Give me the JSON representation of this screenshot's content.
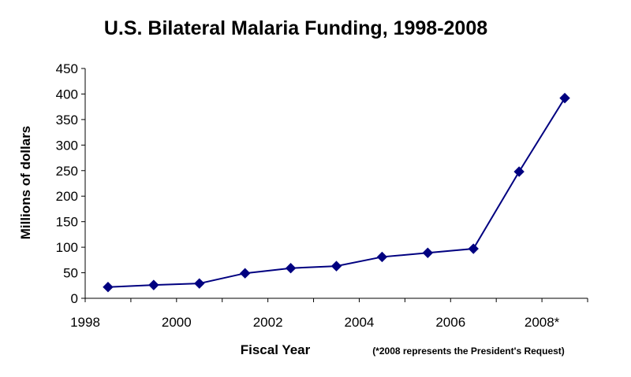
{
  "chart_data": {
    "type": "line",
    "title": "U.S. Bilateral Malaria Funding, 1998-2008",
    "xlabel": "Fiscal Year",
    "ylabel": "Millions of dollars",
    "footnote": "(*2008 represents the President's Request)",
    "x": [
      "1998",
      "1999",
      "2000",
      "2001",
      "2002",
      "2003",
      "2004",
      "2005",
      "2006",
      "2007",
      "2008*"
    ],
    "x_tick_labels": [
      "1998",
      "2000",
      "2002",
      "2004",
      "2006",
      "2008*"
    ],
    "ylim": [
      0,
      450
    ],
    "y_ticks": [
      "0",
      "50",
      "100",
      "150",
      "200",
      "250",
      "300",
      "350",
      "400",
      "450"
    ],
    "series": [
      {
        "values": [
          22,
          26,
          29,
          49,
          59,
          63,
          81,
          89,
          97,
          248,
          392
        ]
      }
    ],
    "grid": false,
    "legend": "none",
    "colors": {
      "line": "#000080",
      "marker": "#000080",
      "axis": "#000000"
    },
    "marker": "diamond"
  }
}
